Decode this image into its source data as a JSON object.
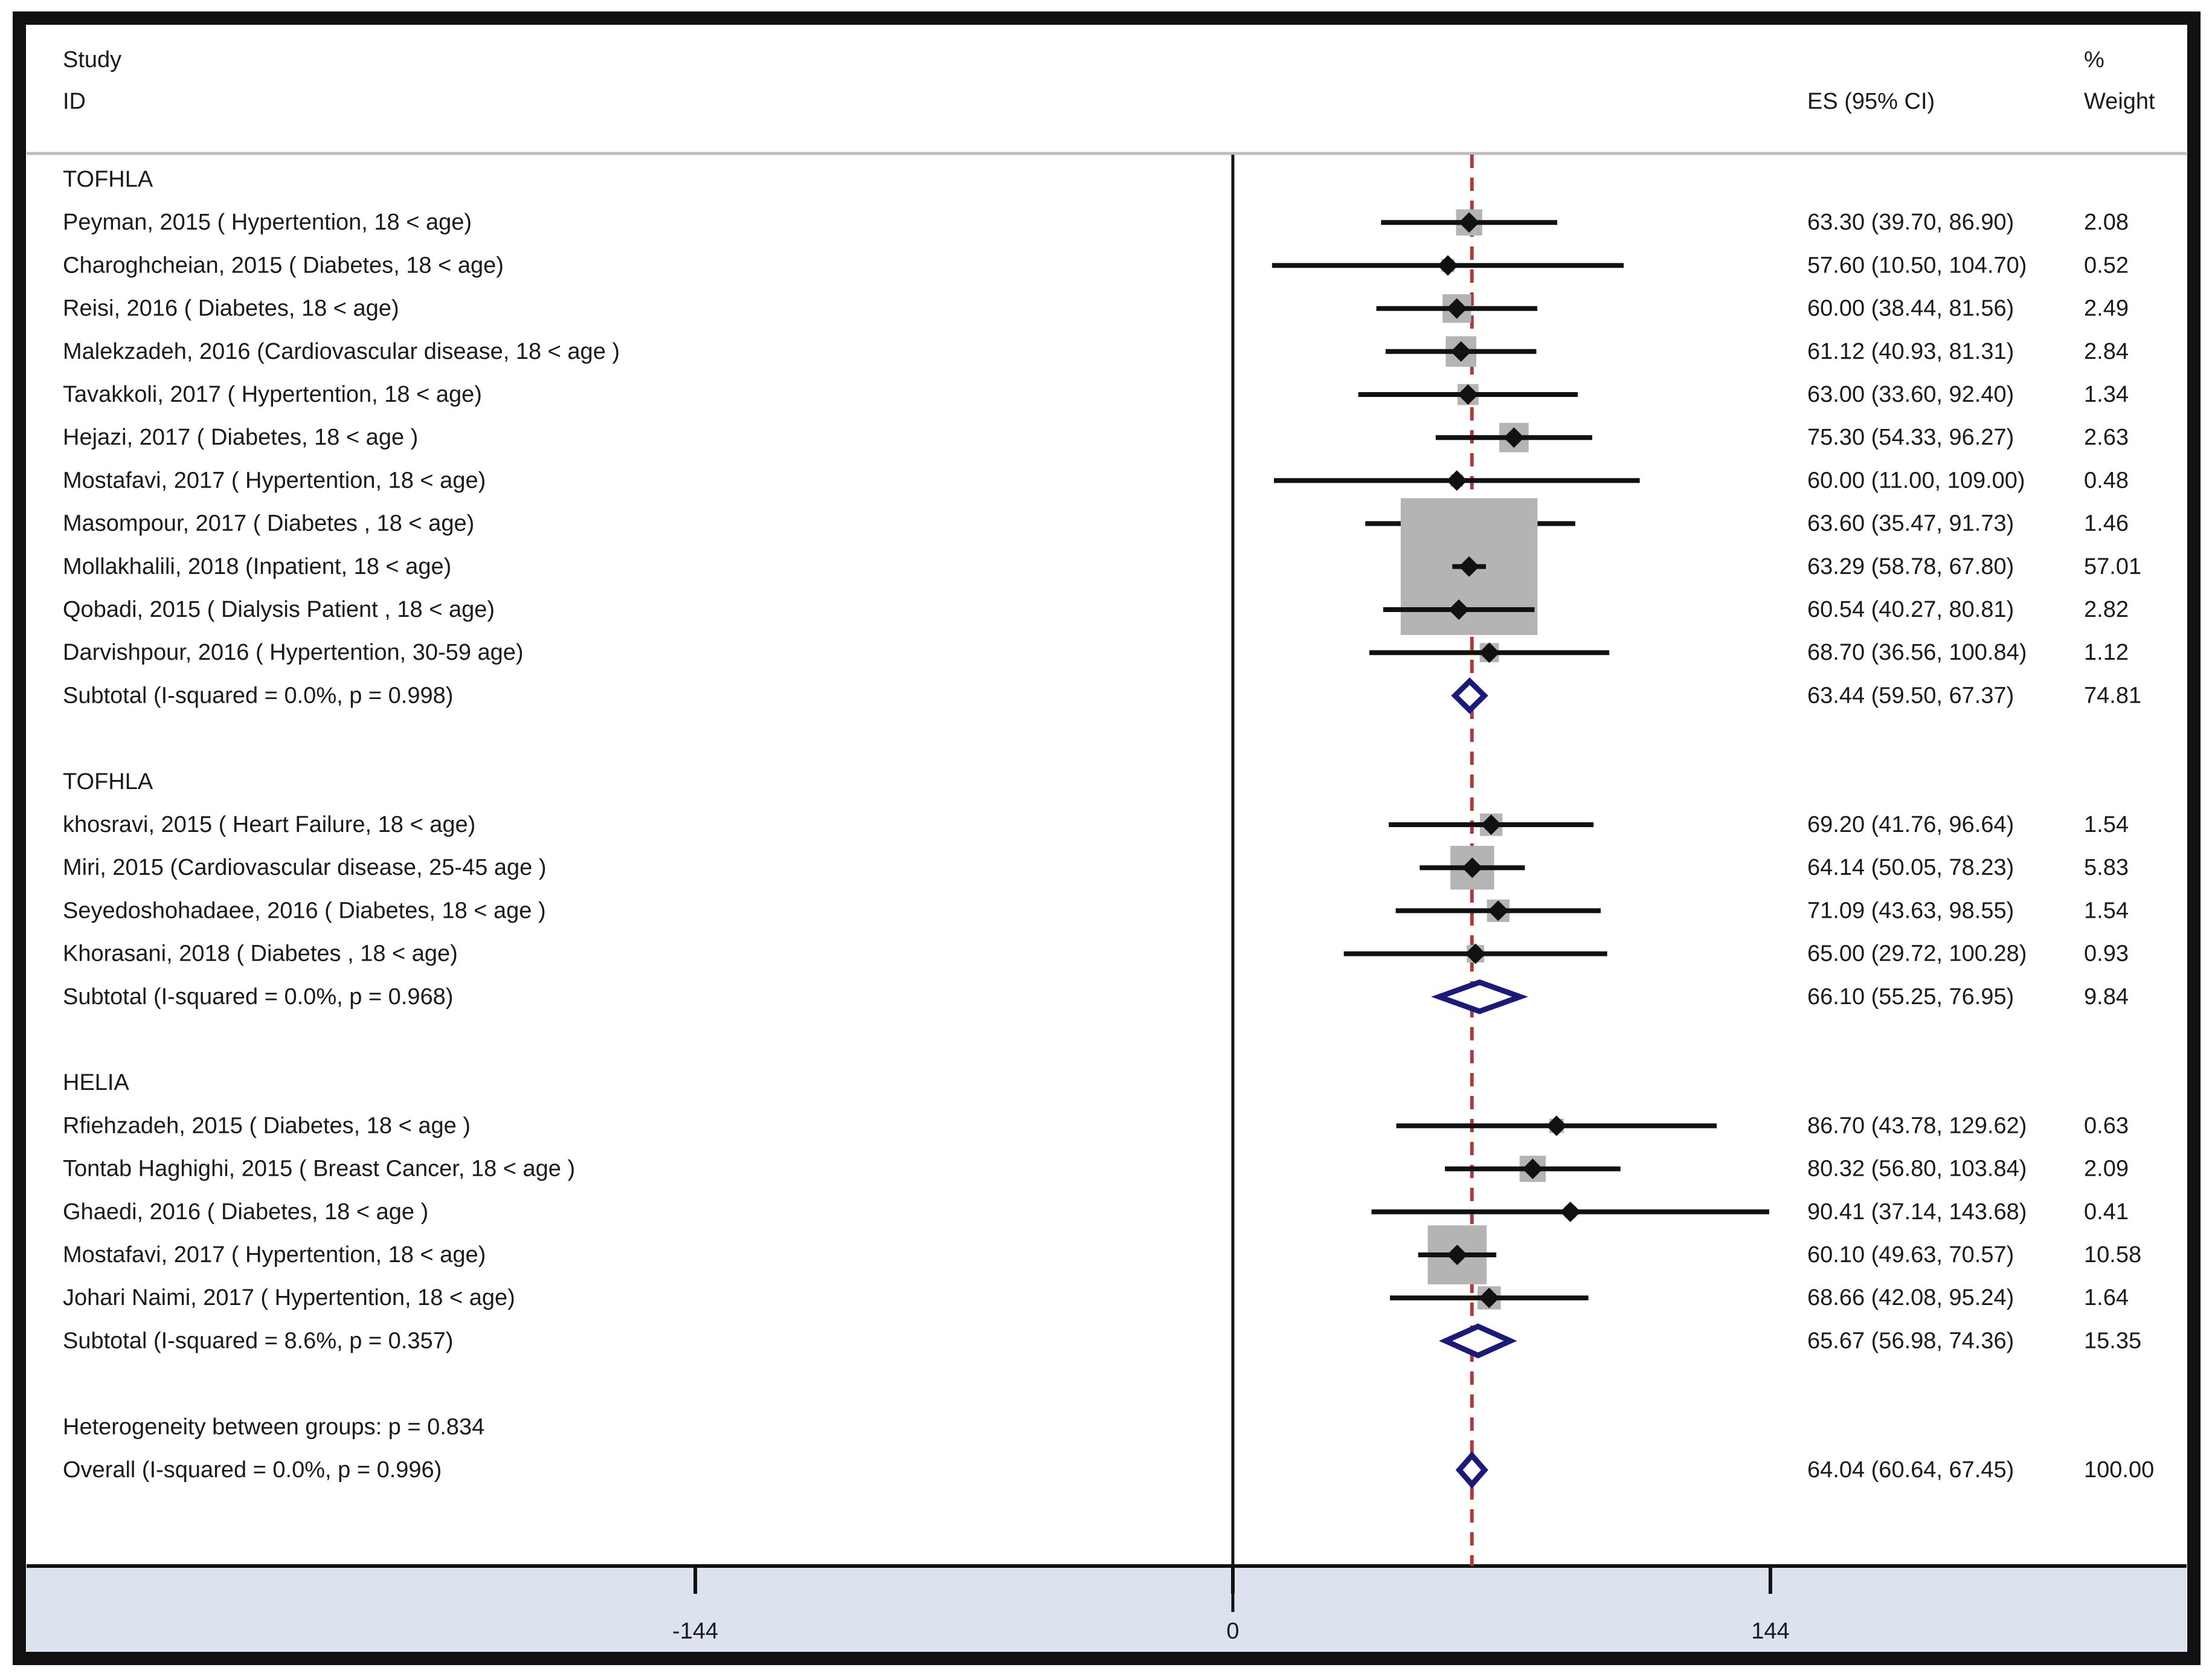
{
  "chart_data": {
    "type": "forest",
    "header": {
      "study_line1": "Study",
      "study_line2": "ID",
      "es_label": "ES (95% CI)",
      "weight_line1": "%",
      "weight_line2": "Weight"
    },
    "x_axis": {
      "ticks": [
        -144,
        0,
        144
      ],
      "tick_labels": [
        "-144",
        "0",
        "144"
      ],
      "range": [
        -328,
        254
      ]
    },
    "overall_line": 64.04,
    "rows": [
      {
        "kind": "group",
        "label": "TOFHLA"
      },
      {
        "kind": "study",
        "label": "Peyman, 2015 ( Hypertention, 18 < age)",
        "es": 63.3,
        "lo": 39.7,
        "hi": 86.9,
        "es_text": "63.30 (39.70, 86.90)",
        "weight": 2.08,
        "weight_text": "2.08"
      },
      {
        "kind": "study",
        "label": "Charoghcheian, 2015 ( Diabetes,  18 < age)",
        "es": 57.6,
        "lo": 10.5,
        "hi": 104.7,
        "es_text": "57.60 (10.50, 104.70)",
        "weight": 0.52,
        "weight_text": "0.52"
      },
      {
        "kind": "study",
        "label": "Reisi, 2016 ( Diabetes, 18 < age)",
        "es": 60.0,
        "lo": 38.44,
        "hi": 81.56,
        "es_text": "60.00 (38.44, 81.56)",
        "weight": 2.49,
        "weight_text": "2.49"
      },
      {
        "kind": "study",
        "label": "Malekzadeh, 2016 (Cardiovascular disease, 18 < age  )",
        "es": 61.12,
        "lo": 40.93,
        "hi": 81.31,
        "es_text": "61.12 (40.93, 81.31)",
        "weight": 2.84,
        "weight_text": "2.84"
      },
      {
        "kind": "study",
        "label": "Tavakkoli, 2017 ( Hypertention, 18 < age)",
        "es": 63.0,
        "lo": 33.6,
        "hi": 92.4,
        "es_text": "63.00 (33.60, 92.40)",
        "weight": 1.34,
        "weight_text": "1.34"
      },
      {
        "kind": "study",
        "label": "Hejazi, 2017 ( Diabetes, 18 < age )",
        "es": 75.3,
        "lo": 54.33,
        "hi": 96.27,
        "es_text": "75.30 (54.33, 96.27)",
        "weight": 2.63,
        "weight_text": "2.63"
      },
      {
        "kind": "study",
        "label": "Mostafavi, 2017 ( Hypertention, 18 < age)",
        "es": 60.0,
        "lo": 11.0,
        "hi": 109.0,
        "es_text": "60.00 (11.00, 109.00)",
        "weight": 0.48,
        "weight_text": "0.48"
      },
      {
        "kind": "study",
        "label": "Masompour, 2017 ( Diabetes , 18 < age)",
        "es": 63.6,
        "lo": 35.47,
        "hi": 91.73,
        "es_text": "63.60 (35.47, 91.73)",
        "weight": 1.46,
        "weight_text": "1.46"
      },
      {
        "kind": "study",
        "label": "Mollakhalili, 2018  (Inpatient, 18 < age)",
        "es": 63.29,
        "lo": 58.78,
        "hi": 67.8,
        "es_text": "63.29 (58.78, 67.80)",
        "weight": 57.01,
        "weight_text": "57.01"
      },
      {
        "kind": "study",
        "label": "Qobadi, 2015 (  Dialysis Patient , 18 < age)",
        "es": 60.54,
        "lo": 40.27,
        "hi": 80.81,
        "es_text": "60.54 (40.27, 80.81)",
        "weight": 2.82,
        "weight_text": "2.82"
      },
      {
        "kind": "study",
        "label": "Darvishpour, 2016 ( Hypertention, 30-59 age)",
        "es": 68.7,
        "lo": 36.56,
        "hi": 100.84,
        "es_text": "68.70 (36.56, 100.84)",
        "weight": 1.12,
        "weight_text": "1.12"
      },
      {
        "kind": "subtotal",
        "label": "Subtotal  (I-squared = 0.0%, p = 0.998)",
        "es": 63.44,
        "lo": 59.5,
        "hi": 67.37,
        "es_text": "63.44 (59.50, 67.37)",
        "weight": 74.81,
        "weight_text": "74.81"
      },
      {
        "kind": "blank"
      },
      {
        "kind": "group",
        "label": "TOFHLA"
      },
      {
        "kind": "study",
        "label": "khosravi,  2015 ( Heart Failure, 18 < age)",
        "es": 69.2,
        "lo": 41.76,
        "hi": 96.64,
        "es_text": "69.20 (41.76, 96.64)",
        "weight": 1.54,
        "weight_text": "1.54"
      },
      {
        "kind": "study",
        "label": "Miri,  2015 (Cardiovascular disease, 25-45 age )",
        "es": 64.14,
        "lo": 50.05,
        "hi": 78.23,
        "es_text": "64.14 (50.05, 78.23)",
        "weight": 5.83,
        "weight_text": "5.83"
      },
      {
        "kind": "study",
        "label": "Seyedoshohadaee, 2016 ( Diabetes, 18 < age )",
        "es": 71.09,
        "lo": 43.63,
        "hi": 98.55,
        "es_text": "71.09 (43.63, 98.55)",
        "weight": 1.54,
        "weight_text": "1.54"
      },
      {
        "kind": "study",
        "label": "Khorasani, 2018 ( Diabetes , 18 < age)",
        "es": 65.0,
        "lo": 29.72,
        "hi": 100.28,
        "es_text": "65.00 (29.72, 100.28)",
        "weight": 0.93,
        "weight_text": "0.93"
      },
      {
        "kind": "subtotal",
        "label": "Subtotal  (I-squared = 0.0%, p = 0.968)",
        "es": 66.1,
        "lo": 55.25,
        "hi": 76.95,
        "es_text": "66.10 (55.25, 76.95)",
        "weight": 9.84,
        "weight_text": "9.84"
      },
      {
        "kind": "blank"
      },
      {
        "kind": "group",
        "label": "HELIA"
      },
      {
        "kind": "study",
        "label": "Rfiehzadeh, 2015 ( Diabetes, 18 < age )",
        "es": 86.7,
        "lo": 43.78,
        "hi": 129.62,
        "es_text": "86.70 (43.78, 129.62)",
        "weight": 0.63,
        "weight_text": "0.63"
      },
      {
        "kind": "study",
        "label": "Tontab Haghighi, 2015 ( Breast Cancer, 18 < age )",
        "es": 80.32,
        "lo": 56.8,
        "hi": 103.84,
        "es_text": "80.32 (56.80, 103.84)",
        "weight": 2.09,
        "weight_text": "2.09"
      },
      {
        "kind": "study",
        "label": "Ghaedi, 2016 ( Diabetes, 18 < age )",
        "es": 90.41,
        "lo": 37.14,
        "hi": 143.68,
        "es_text": "90.41 (37.14, 143.68)",
        "weight": 0.41,
        "weight_text": "0.41"
      },
      {
        "kind": "study",
        "label": "Mostafavi, 2017 ( Hypertention, 18 < age)",
        "es": 60.1,
        "lo": 49.63,
        "hi": 70.57,
        "es_text": "60.10 (49.63, 70.57)",
        "weight": 10.58,
        "weight_text": "10.58"
      },
      {
        "kind": "study",
        "label": "Johari Naimi, 2017 ( Hypertention, 18 < age)",
        "es": 68.66,
        "lo": 42.08,
        "hi": 95.24,
        "es_text": "68.66 (42.08, 95.24)",
        "weight": 1.64,
        "weight_text": "1.64"
      },
      {
        "kind": "subtotal",
        "label": "Subtotal  (I-squared = 8.6%, p = 0.357)",
        "es": 65.67,
        "lo": 56.98,
        "hi": 74.36,
        "es_text": "65.67 (56.98, 74.36)",
        "weight": 15.35,
        "weight_text": "15.35"
      },
      {
        "kind": "blank"
      },
      {
        "kind": "note",
        "label": "Heterogeneity between groups: p = 0.834"
      },
      {
        "kind": "overall",
        "label": "Overall  (I-squared = 0.0%, p = 0.996)",
        "es": 64.04,
        "lo": 60.64,
        "hi": 67.45,
        "es_text": "64.04 (60.64, 67.45)",
        "weight": 100.0,
        "weight_text": "100.00"
      }
    ]
  },
  "colors": {
    "frame": "#111111",
    "marker": "#111111",
    "weight_box": "#b4b4b4",
    "diamond": "#1a1a7a",
    "null_line": "#111111",
    "overall_line": "#b03a3a",
    "axis_band": "#dde3ee",
    "separator": "#bdbdbd"
  }
}
